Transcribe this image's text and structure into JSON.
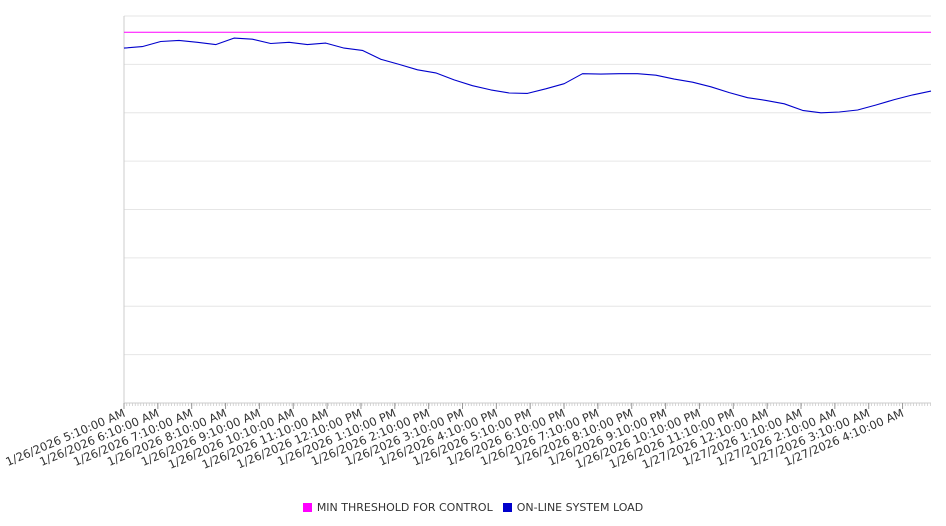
{
  "chart_data": {
    "type": "line",
    "title": "",
    "xlabel": "",
    "ylabel": "",
    "grid": true,
    "legend_position": "bottom-center",
    "x_tick_labels": [
      "1/26/2026 5:10:00 AM",
      "1/26/2026 6:10:00 AM",
      "1/26/2026 7:10:00 AM",
      "1/26/2026 8:10:00 AM",
      "1/26/2026 9:10:00 AM",
      "1/26/2026 10:10:00 AM",
      "1/26/2026 11:10:00 AM",
      "1/26/2026 12:10:00 PM",
      "1/26/2026 1:10:00 PM",
      "1/26/2026 2:10:00 PM",
      "1/26/2026 3:10:00 PM",
      "1/26/2026 4:10:00 PM",
      "1/26/2026 5:10:00 PM",
      "1/26/2026 6:10:00 PM",
      "1/26/2026 7:10:00 PM",
      "1/26/2026 8:10:00 PM",
      "1/26/2026 9:10:00 PM",
      "1/26/2026 10:10:00 PM",
      "1/26/2026 11:10:00 PM",
      "1/27/2026 12:10:00 AM",
      "1/27/2026 1:10:00 AM",
      "1/27/2026 2:10:00 AM",
      "1/27/2026 3:10:00 AM",
      "1/27/2026 4:10:00 AM"
    ],
    "y_gridlines": 8,
    "series": [
      {
        "name": "MIN THRESHOLD FOR CONTROL",
        "color": "#ff00ff",
        "values": [
          0.958,
          0.958
        ]
      },
      {
        "name": "ON-LINE SYSTEM LOAD",
        "color": "#0000cc",
        "values": [
          0.917,
          0.921,
          0.934,
          0.937,
          0.932,
          0.926,
          0.943,
          0.94,
          0.929,
          0.932,
          0.926,
          0.93,
          0.917,
          0.911,
          0.888,
          0.875,
          0.861,
          0.853,
          0.835,
          0.82,
          0.809,
          0.801,
          0.8,
          0.812,
          0.825,
          0.851,
          0.85,
          0.851,
          0.851,
          0.847,
          0.837,
          0.829,
          0.817,
          0.802,
          0.789,
          0.782,
          0.773,
          0.756,
          0.75,
          0.752,
          0.757,
          0.77,
          0.784,
          0.796,
          0.806
        ]
      }
    ]
  }
}
